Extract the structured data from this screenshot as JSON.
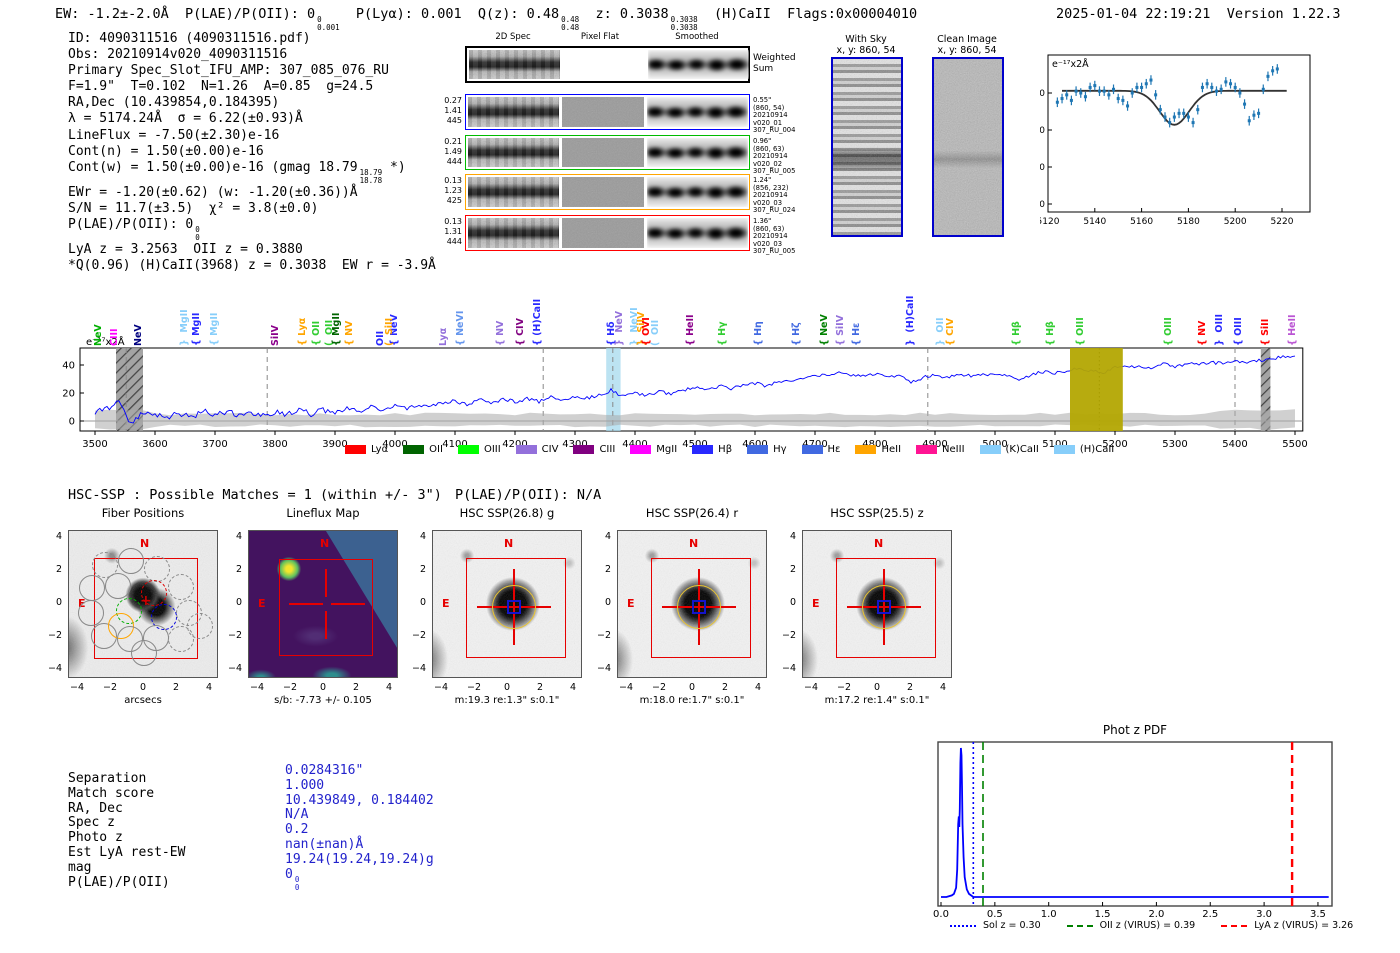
{
  "header": {
    "left_segments": [
      {
        "t": "EW: -1.2±-2.0Å  P(LAE)/P(OII): 0"
      },
      {
        "stack": [
          "0",
          "0.001"
        ]
      },
      {
        "t": "  P(Lyα): 0.001  Q(z): 0.48"
      },
      {
        "stack": [
          "0.48",
          "0.48"
        ]
      },
      {
        "t": "  z: 0.3038"
      },
      {
        "stack": [
          "0.3038",
          "0.3038"
        ]
      },
      {
        "t": "  (H)CaII  Flags:0x00004010"
      }
    ],
    "timestamp": "2025-01-04 22:19:21",
    "version": "Version 1.22.3"
  },
  "info_lines": [
    [
      {
        "t": "ID: 4090311516 (4090311516.pdf)"
      }
    ],
    [
      {
        "t": "Obs: 20210914v020_4090311516"
      }
    ],
    [
      {
        "t": "Primary Spec_Slot_IFU_AMP: 307_085_076_RU"
      }
    ],
    [
      {
        "t": "F=1.9\"  T=0.102  N=1.26  A=0.85  g=24.5"
      }
    ],
    [
      {
        "t": "RA,Dec (10.439854,0.184395)"
      }
    ],
    [
      {
        "t": "λ = 5174.24Å  σ = 6.22(±0.93)Å"
      }
    ],
    [
      {
        "t": "LineFlux = -7.50(±2.30)e-16"
      }
    ],
    [
      {
        "t": "Cont(n) = 1.50(±0.00)e-16"
      }
    ],
    [
      {
        "t": "Cont(w) = 1.50(±0.00)e-16 (gmag 18.79"
      },
      {
        "stack": [
          "18.79",
          "18.78"
        ]
      },
      {
        "t": " *)"
      }
    ],
    [
      {
        "t": "EWr = -1.20(±0.62) (w: -1.20(±0.36))Å"
      }
    ],
    [
      {
        "t": "S/N = 11.7(±3.5)  χ² = 3.8(±0.0)"
      }
    ],
    [
      {
        "t": "P(LAE)/P(OII): 0"
      },
      {
        "stack": [
          "0",
          "0"
        ]
      }
    ],
    [
      {
        "t": "LyA z = 3.2563  OII z = 0.3880"
      }
    ],
    [
      {
        "t": "*Q(0.96) (H)CaII(3968) z = 0.3038  EW r = -3.9Å"
      }
    ]
  ],
  "spec2d": {
    "col_headers": [
      "2D Spec",
      "Pixel Flat",
      "Smoothed"
    ],
    "rows": [
      {
        "border": "#000000",
        "left": [],
        "right": [
          "Weighted",
          "Sum"
        ],
        "flat": "#ffffff",
        "big_right": true
      },
      {
        "border": "#0000ff",
        "left": [
          "0.27",
          "1.41",
          "445"
        ],
        "right": [
          "0.55\"",
          "(860, 54)",
          "20210914",
          "v020_01",
          "307_RU_004"
        ],
        "flat": "#9a9a9a"
      },
      {
        "border": "#00bb00",
        "left": [
          "0.21",
          "1.49",
          "444"
        ],
        "right": [
          "0.96\"",
          "(860, 63)",
          "20210914",
          "v020_02",
          "307_RU_005"
        ],
        "flat": "#9a9a9a"
      },
      {
        "border": "#ffa500",
        "left": [
          "0.13",
          "1.23",
          "425"
        ],
        "right": [
          "1.24\"",
          "(856, 232)",
          "20210914",
          "v020_03",
          "307_RU_024"
        ],
        "flat": "#9a9a9a"
      },
      {
        "border": "#ff0000",
        "left": [
          "0.13",
          "1.31",
          "444"
        ],
        "right": [
          "1.36\"",
          "(860, 63)",
          "20210914",
          "v020_03",
          "307_RU_005"
        ],
        "flat": "#9a9a9a"
      }
    ]
  },
  "sky_panels": [
    {
      "title": "With Sky",
      "sub": "x, y: 860, 54"
    },
    {
      "title": "Clean Image",
      "sub": "x, y: 860, 54"
    }
  ],
  "hsc": {
    "header": "HSC-SSP : Possible Matches = 1 (within +/- 3\")",
    "plae": "P(LAE)/P(OII): N/A",
    "compass": {
      "n": "N",
      "e": "E"
    },
    "yticks": [
      "4",
      "2",
      "0",
      "−2",
      "−4"
    ],
    "xticks": [
      "−4",
      "−2",
      "0",
      "2",
      "4"
    ],
    "panels": [
      {
        "title": "Fiber Positions",
        "xlabel": "arcsecs",
        "kind": "fiber"
      },
      {
        "title": "Lineflux Map",
        "xlabel": "s/b: -7.73 +/- 0.105",
        "kind": "map"
      },
      {
        "title": "HSC SSP(26.8) g",
        "xlabel": "m:19.3 re:1.3\" s:0.1\"",
        "kind": "hsc"
      },
      {
        "title": "HSC SSP(26.4) r",
        "xlabel": "m:18.0 re:1.7\" s:0.1\"",
        "kind": "hsc"
      },
      {
        "title": "HSC SSP(25.5) z",
        "xlabel": "m:17.2 re:1.4\" s:0.1\"",
        "kind": "hsc"
      }
    ],
    "fibers": [
      [
        36,
        34,
        "#888888",
        1
      ],
      [
        62,
        30,
        "#888888",
        0
      ],
      [
        88,
        38,
        "#888888",
        1
      ],
      [
        23,
        57,
        "#888888",
        0
      ],
      [
        49,
        55,
        "#888888",
        0
      ],
      [
        112,
        56,
        "#888888",
        1
      ],
      [
        60,
        80,
        "#00b000",
        1
      ],
      [
        85,
        62,
        "#dd0000",
        1
      ],
      [
        95,
        86,
        "#0000dd",
        1
      ],
      [
        120,
        82,
        "#888888",
        1
      ],
      [
        22,
        82,
        "#888888",
        0
      ],
      [
        35,
        105,
        "#888888",
        0
      ],
      [
        52,
        95,
        "#ffa500",
        0
      ],
      [
        61,
        108,
        "#888888",
        0
      ],
      [
        87,
        107,
        "#888888",
        0
      ],
      [
        112,
        108,
        "#888888",
        1
      ],
      [
        131,
        95,
        "#888888",
        1
      ],
      [
        75,
        122,
        "#888888",
        0
      ]
    ]
  },
  "match_table": {
    "labels": [
      "Separation",
      "Match score",
      "RA, Dec",
      "Spec z",
      "Photo z",
      "Est LyA rest-EW",
      "mag",
      "P(LAE)/P(OII)"
    ],
    "values": [
      [
        {
          "t": "0.0284316\""
        }
      ],
      [
        {
          "t": "1.000"
        }
      ],
      [
        {
          "t": "10.439849, 0.184402"
        }
      ],
      [
        {
          "t": "N/A"
        }
      ],
      [
        {
          "t": "0.2"
        }
      ],
      [
        {
          "t": "nan(±nan)Å"
        }
      ],
      [
        {
          "t": "19.24(19.24,19.24)g"
        }
      ],
      [
        {
          "t": "0"
        },
        {
          "stack": [
            "0",
            "0"
          ]
        }
      ]
    ]
  },
  "chart_data": [
    {
      "id": "line_fit_inset",
      "type": "scatter",
      "unit_label": "e⁻¹⁷x2Å",
      "x": [
        5124,
        5126,
        5128,
        5130,
        5132,
        5134,
        5136,
        5138,
        5140,
        5142,
        5144,
        5146,
        5148,
        5150,
        5152,
        5154,
        5156,
        5158,
        5160,
        5162,
        5164,
        5166,
        5168,
        5170,
        5172,
        5174,
        5176,
        5178,
        5180,
        5182,
        5184,
        5186,
        5188,
        5190,
        5192,
        5194,
        5196,
        5198,
        5200,
        5202,
        5204,
        5206,
        5208,
        5210,
        5212,
        5214,
        5216,
        5218
      ],
      "y": [
        27.5,
        28.5,
        29.5,
        28,
        30.5,
        30,
        29,
        31.5,
        32,
        30.5,
        30.5,
        29.5,
        31,
        28.5,
        28,
        26.5,
        30,
        31.5,
        31.5,
        32.5,
        33.5,
        29.5,
        25.5,
        23.5,
        22,
        23.5,
        24.5,
        24.5,
        23.5,
        22,
        25.5,
        31.5,
        32.5,
        31.5,
        30.5,
        31,
        33,
        32.5,
        31.5,
        30,
        27,
        22.5,
        24,
        24.5,
        31,
        34.5,
        36,
        36.5
      ],
      "yerr": 1.3,
      "fit": {
        "baseline": 30.6,
        "center": 5174,
        "depth": 9.2,
        "sigma": 6.3
      },
      "xticks": [
        5120,
        5140,
        5160,
        5180,
        5200,
        5220
      ],
      "yticks": [
        0,
        10,
        20,
        30
      ],
      "xlim": [
        5118,
        5232
      ],
      "ylim": [
        0,
        40
      ],
      "point_color": "#1f77b4",
      "fit_color": "#333333"
    },
    {
      "id": "full_spectrum",
      "type": "line",
      "unit_label": "e⁻¹⁷x2Å",
      "x_start": 3500,
      "x_step": 20,
      "y": [
        6,
        9,
        15,
        -2,
        7,
        4,
        2,
        6,
        3,
        7,
        4,
        7,
        3,
        6,
        4,
        7,
        5,
        8,
        5,
        8,
        6,
        9,
        7,
        10,
        8,
        11,
        9,
        12,
        10,
        13,
        14,
        12,
        15,
        13,
        15,
        14,
        16,
        14,
        17,
        15,
        17,
        16,
        18,
        22,
        18,
        20,
        18,
        21,
        19,
        22,
        24,
        22,
        25,
        23,
        26,
        27,
        25,
        28,
        29,
        31,
        33,
        32,
        35,
        33,
        32,
        34,
        31,
        33,
        28,
        31,
        33,
        31,
        34,
        32,
        33,
        34,
        32,
        30,
        33,
        35,
        34,
        36,
        38,
        36,
        34,
        39,
        38,
        39,
        38,
        41,
        39,
        41,
        40,
        42,
        41,
        43,
        42,
        43,
        44,
        46,
        46
      ],
      "line_color": "#0000ff",
      "xticks": [
        3500,
        3600,
        3700,
        3800,
        3900,
        4000,
        4100,
        4200,
        4300,
        4400,
        4500,
        4600,
        4700,
        4800,
        4900,
        5000,
        5100,
        5200,
        5300,
        5400,
        5500
      ],
      "yticks": [
        0,
        20,
        40
      ],
      "xlim": [
        3475,
        5513
      ],
      "ylim": [
        -8,
        52
      ],
      "vlines": [
        {
          "x": 3552,
          "color": "#888888",
          "style": "dash"
        },
        {
          "x": 3787,
          "color": "#888888",
          "style": "dash"
        },
        {
          "x": 4247,
          "color": "#888888",
          "style": "dash"
        },
        {
          "x": 4363,
          "color": "#888888",
          "style": "dash"
        },
        {
          "x": 4888,
          "color": "#888888",
          "style": "dash"
        },
        {
          "x": 5174,
          "color": "#111111",
          "style": "dot"
        },
        {
          "x": 5400,
          "color": "#888888",
          "style": "dash"
        }
      ],
      "bands": [
        {
          "x0": 3535,
          "x1": 3580,
          "type": "hatch"
        },
        {
          "x0": 4352,
          "x1": 4376,
          "type": "fill",
          "color": "#a6d9ee",
          "opacity": 0.75
        },
        {
          "x0": 5125,
          "x1": 5213,
          "type": "fill",
          "color": "#b3a702",
          "opacity": 0.95
        },
        {
          "x0": 5443,
          "x1": 5459,
          "type": "hatch"
        }
      ],
      "line_labels": [
        [
          3505,
          "NeV",
          "#00b000"
        ],
        [
          3532,
          "CIII",
          "#ff00ff"
        ],
        [
          3572,
          "NeV",
          "#000080"
        ],
        [
          3648,
          "}  MgII",
          "#87cefa"
        ],
        [
          3668,
          "{ MgII",
          "#2929ff"
        ],
        [
          3698,
          "{ MgII",
          "#87cefa"
        ],
        [
          3800,
          "SiIV",
          "#8b008b"
        ],
        [
          3845,
          "{ Lyα",
          "#ffa500"
        ],
        [
          3868,
          "{ OII",
          "#32cd32"
        ],
        [
          3890,
          "(  OII",
          "#32cd32"
        ],
        [
          3902,
          "{ MgII",
          "#006400"
        ],
        [
          3924,
          "{ NV",
          "#ffa500"
        ],
        [
          3975,
          "OII",
          "#2929ff"
        ],
        [
          3998,
          "{ NeV",
          "#2929ff"
        ],
        [
          3990,
          "(  SiII",
          "#ffa500"
        ],
        [
          4080,
          "Lyα",
          "#9370db"
        ],
        [
          4108,
          "{ NeVI",
          "#6495ed"
        ],
        [
          4175,
          "{ NV",
          "#9370db"
        ],
        [
          4208,
          "{ CIV",
          "#800080"
        ],
        [
          4237,
          "{ (H)CaII",
          "#2929ff"
        ],
        [
          4360,
          "{ Hδ",
          "#2929ff"
        ],
        [
          4374,
          "}  NeV",
          "#9370db"
        ],
        [
          4398,
          "}  NeVI",
          "#87cefa"
        ],
        [
          4410,
          "}  SiIV",
          "#ffa500"
        ],
        [
          4434,
          "(  OII",
          "#87cefa"
        ],
        [
          4418,
          "{ OVI",
          "#ff0000"
        ],
        [
          4492,
          "{ HeII",
          "#8b008b"
        ],
        [
          4545,
          "{ Hγ",
          "#32cd32"
        ],
        [
          4605,
          "{ Hη",
          "#4169e1"
        ],
        [
          4668,
          "{ Hζ",
          "#4169e1"
        ],
        [
          4715,
          "{ NeV",
          "#008000"
        ],
        [
          4742,
          "{ SiIV",
          "#9370db"
        ],
        [
          4768,
          "{ Hε",
          "#4169e1"
        ],
        [
          4858,
          "}  (H)CaII",
          "#2929ff"
        ],
        [
          4908,
          "}  OII",
          "#87cefa"
        ],
        [
          4925,
          "{ CIV",
          "#ffa500"
        ],
        [
          5035,
          "{ Hβ",
          "#32cd32"
        ],
        [
          5092,
          "{ Hβ",
          "#32cd32"
        ],
        [
          5142,
          "{ OIII",
          "#32cd32"
        ],
        [
          5288,
          "{ OIII",
          "#32cd32"
        ],
        [
          5345,
          "{ NV",
          "#ff0000"
        ],
        [
          5374,
          "}  OIII",
          "#2929ff"
        ],
        [
          5405,
          "{ OIII",
          "#2929ff"
        ],
        [
          5450,
          "{ SiII",
          "#ff0000"
        ],
        [
          5495,
          "{ HeII",
          "#ba55d3"
        ]
      ],
      "legend": [
        {
          "label": "Lyα",
          "color": "#ff0000"
        },
        {
          "label": "OII",
          "color": "#006400"
        },
        {
          "label": "OIII",
          "color": "#00ff00"
        },
        {
          "label": "CIV",
          "color": "#9370db"
        },
        {
          "label": "CIII",
          "color": "#800080"
        },
        {
          "label": "MgII",
          "color": "#ff00ff"
        },
        {
          "label": "Hβ",
          "color": "#2929ff"
        },
        {
          "label": "Hγ",
          "color": "#4169e1"
        },
        {
          "label": "Hε",
          "color": "#4169e1"
        },
        {
          "label": "HeII",
          "color": "#ffa500"
        },
        {
          "label": "NeIII",
          "color": "#ff1493"
        },
        {
          "label": "(K)CaII",
          "color": "#87cefa"
        },
        {
          "label": "(H)CaII",
          "color": "#87cefa"
        }
      ]
    },
    {
      "id": "phot_z_pdf",
      "type": "line",
      "title": "Phot z PDF",
      "x": [
        0.0,
        0.05,
        0.1,
        0.12,
        0.14,
        0.15,
        0.16,
        0.165,
        0.17,
        0.175,
        0.18,
        0.185,
        0.19,
        0.195,
        0.2,
        0.21,
        0.22,
        0.24,
        0.26,
        0.3,
        0.4,
        1.0,
        2.0,
        3.0,
        3.6
      ],
      "y": [
        0.02,
        0.02,
        0.03,
        0.04,
        0.08,
        0.2,
        0.5,
        0.55,
        0.48,
        0.6,
        0.9,
        1.0,
        0.95,
        0.75,
        0.5,
        0.28,
        0.15,
        0.07,
        0.04,
        0.02,
        0.02,
        0.02,
        0.02,
        0.02,
        0.02
      ],
      "line_color": "#0000ff",
      "xticks": [
        "0.0",
        "0.5",
        "1.0",
        "1.5",
        "2.0",
        "2.5",
        "3.0",
        "3.5"
      ],
      "xlim": [
        0,
        3.65
      ],
      "ylim": [
        0,
        1.08
      ],
      "vlines": [
        {
          "x": 0.3,
          "color": "#0000ff",
          "style": "dotted",
          "label": "Sol z = 0.30"
        },
        {
          "x": 0.39,
          "color": "#008000",
          "style": "dashed",
          "label": "OII z (VIRUS) = 0.39"
        },
        {
          "x": 3.26,
          "color": "#ff0000",
          "style": "dashed",
          "label": "LyA z (VIRUS) = 3.26"
        }
      ]
    }
  ]
}
